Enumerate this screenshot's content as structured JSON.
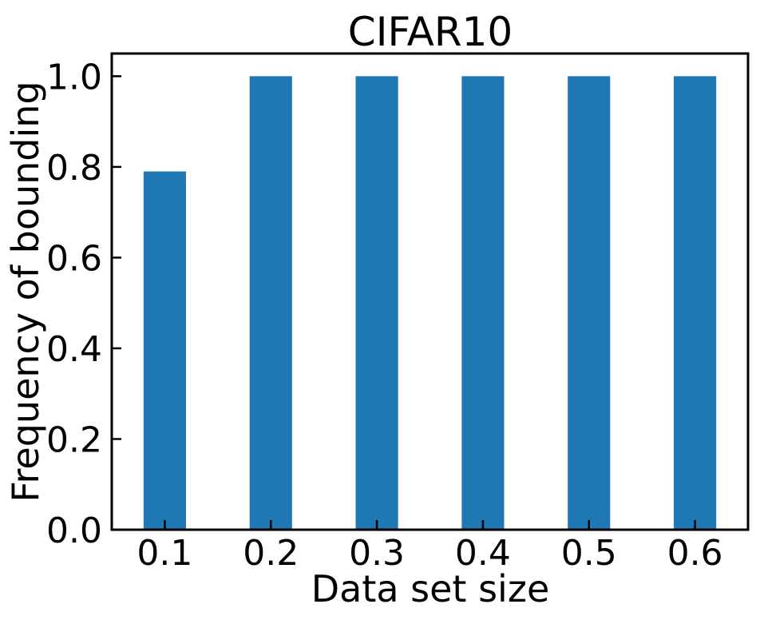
{
  "chart_data": {
    "type": "bar",
    "title": "CIFAR10",
    "xlabel": "Data set size",
    "ylabel": "Frequency of bounding",
    "categories": [
      "0.1",
      "0.2",
      "0.3",
      "0.4",
      "0.5",
      "0.6"
    ],
    "values": [
      0.79,
      1.0,
      1.0,
      1.0,
      1.0,
      1.0
    ],
    "ylim": [
      0,
      1.05
    ],
    "yticks": [
      "0.0",
      "0.2",
      "0.4",
      "0.6",
      "0.8",
      "1.0"
    ],
    "grid": false,
    "bar_color": "#1f77b4"
  }
}
